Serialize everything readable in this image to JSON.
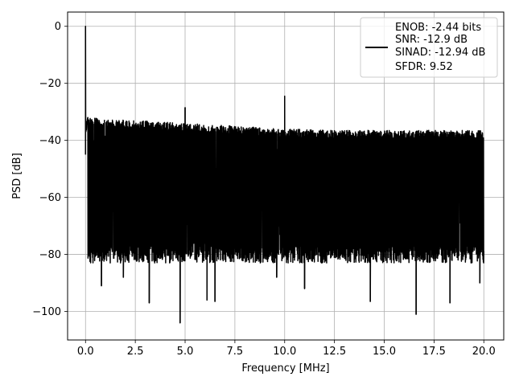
{
  "chart_data": {
    "type": "line",
    "title": "",
    "xlabel": "Frequency [MHz]",
    "ylabel": "PSD [dB]",
    "xlim": [
      -0.9,
      21.0
    ],
    "ylim": [
      -110,
      5
    ],
    "xticks": [
      0.0,
      2.5,
      5.0,
      7.5,
      10.0,
      12.5,
      15.0,
      17.5,
      20.0
    ],
    "xtick_labels": [
      "0.0",
      "2.5",
      "5.0",
      "7.5",
      "10.0",
      "12.5",
      "15.0",
      "17.5",
      "20.0"
    ],
    "yticks": [
      0,
      -20,
      -40,
      -60,
      -80,
      -100
    ],
    "ytick_labels": [
      "0",
      "−20",
      "−40",
      "−60",
      "−80",
      "−100"
    ],
    "grid": true,
    "legend_position": "top-right",
    "legend_entries": [
      "ENOB: -2.44 bits",
      "SNR: -12.9 dB",
      "SINAD: -12.94 dB",
      "SFDR: 9.52"
    ],
    "series": [
      {
        "color": "#000000",
        "x_range": [
          0.0,
          20.0
        ],
        "noise_floor_top_db": [
          [
            0.1,
            -32
          ],
          [
            2.5,
            -33
          ],
          [
            5.0,
            -34
          ],
          [
            7.5,
            -35
          ],
          [
            10.0,
            -36
          ],
          [
            12.5,
            -36.5
          ],
          [
            15.0,
            -36.5
          ],
          [
            17.5,
            -36.5
          ],
          [
            20.0,
            -36.5
          ]
        ],
        "noise_floor_bottom_db": -80,
        "peaks": [
          {
            "x": 0.0,
            "y": 0.0
          },
          {
            "x": 5.0,
            "y": -28.5
          },
          {
            "x": 10.0,
            "y": -24.5
          }
        ],
        "dips": [
          {
            "x": 0.8,
            "y": -91
          },
          {
            "x": 1.9,
            "y": -88
          },
          {
            "x": 3.2,
            "y": -97
          },
          {
            "x": 4.75,
            "y": -104
          },
          {
            "x": 6.1,
            "y": -96
          },
          {
            "x": 6.5,
            "y": -96.5
          },
          {
            "x": 9.6,
            "y": -88
          },
          {
            "x": 11.0,
            "y": -92
          },
          {
            "x": 14.3,
            "y": -96.5
          },
          {
            "x": 16.6,
            "y": -101
          },
          {
            "x": 18.3,
            "y": -97
          },
          {
            "x": 19.8,
            "y": -90
          }
        ]
      }
    ]
  }
}
